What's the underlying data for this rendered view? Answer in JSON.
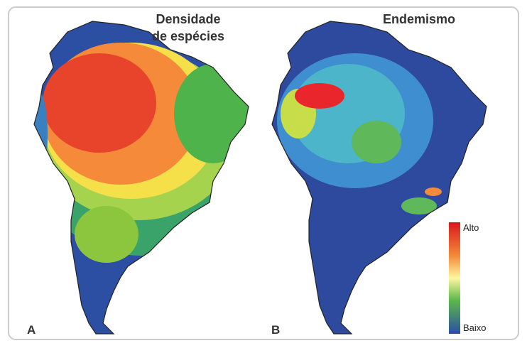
{
  "panels": [
    {
      "label": "A",
      "title": [
        "Densidade",
        "de espécies"
      ]
    },
    {
      "label": "B",
      "title": [
        "Endemismo"
      ]
    }
  ],
  "legend": {
    "high": "Alto",
    "low": "Baixo"
  }
}
